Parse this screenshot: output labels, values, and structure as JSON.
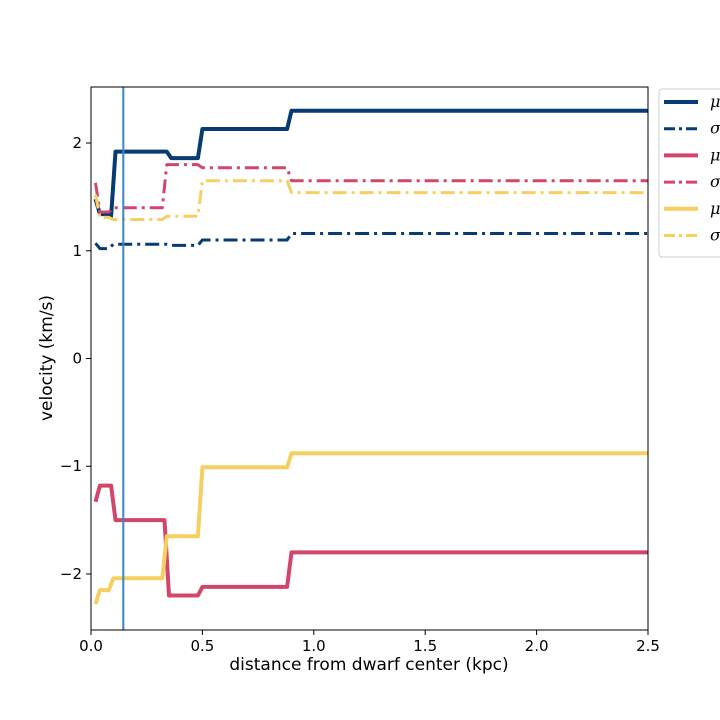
{
  "chart_data": {
    "type": "line",
    "xlabel": "distance from dwarf center (kpc)",
    "ylabel": "velocity (km/s)",
    "xlim": [
      0.0,
      2.5
    ],
    "ylim": [
      -2.52,
      2.52
    ],
    "x_ticks": [
      0.0,
      0.5,
      1.0,
      1.5,
      2.0,
      2.5
    ],
    "x_tick_labels": [
      "0.0",
      "0.5",
      "1.0",
      "1.5",
      "2.0",
      "2.5"
    ],
    "y_ticks": [
      -2,
      -1,
      0,
      1,
      2
    ],
    "y_tick_labels": [
      "−2",
      "−1",
      "0",
      "1",
      "2"
    ],
    "vertical_line": {
      "x": 0.145,
      "color": "#3a86c8"
    },
    "grid": false,
    "legend_placement": "outside-top-right",
    "series": [
      {
        "name": "μ",
        "color": "#063b73",
        "style": "solid",
        "x": [
          0.02,
          0.04,
          0.06,
          0.08,
          0.09,
          0.11,
          0.13,
          0.32,
          0.34,
          0.36,
          0.48,
          0.5,
          0.52,
          0.88,
          0.9,
          0.92,
          2.5
        ],
        "y": [
          1.48,
          1.34,
          1.34,
          1.34,
          1.32,
          1.92,
          1.92,
          1.92,
          1.92,
          1.86,
          1.86,
          2.13,
          2.13,
          2.13,
          2.3,
          2.3,
          2.3
        ]
      },
      {
        "name": "σ",
        "color": "#063b73",
        "style": "dashdot",
        "x": [
          0.02,
          0.04,
          0.06,
          0.08,
          0.1,
          0.12,
          0.32,
          0.34,
          0.36,
          0.48,
          0.5,
          0.52,
          0.88,
          0.9,
          0.92,
          2.5
        ],
        "y": [
          1.07,
          1.02,
          1.02,
          1.02,
          1.06,
          1.06,
          1.06,
          1.06,
          1.05,
          1.05,
          1.1,
          1.1,
          1.1,
          1.16,
          1.16,
          1.16
        ]
      },
      {
        "name": "μ",
        "color": "#d1466a",
        "style": "solid",
        "x": [
          0.02,
          0.04,
          0.06,
          0.08,
          0.09,
          0.11,
          0.32,
          0.33,
          0.35,
          0.48,
          0.5,
          0.52,
          0.88,
          0.9,
          0.92,
          2.5
        ],
        "y": [
          -1.33,
          -1.18,
          -1.18,
          -1.18,
          -1.18,
          -1.5,
          -1.5,
          -1.5,
          -2.2,
          -2.2,
          -2.12,
          -2.12,
          -2.12,
          -1.8,
          -1.8,
          -1.8
        ]
      },
      {
        "name": "σ",
        "color": "#d1466a",
        "style": "dashdot",
        "x": [
          0.02,
          0.04,
          0.06,
          0.08,
          0.1,
          0.12,
          0.32,
          0.34,
          0.36,
          0.48,
          0.5,
          0.52,
          0.88,
          0.9,
          0.92,
          2.5
        ],
        "y": [
          1.63,
          1.36,
          1.36,
          1.36,
          1.4,
          1.4,
          1.4,
          1.8,
          1.8,
          1.8,
          1.77,
          1.77,
          1.77,
          1.65,
          1.65,
          1.65
        ]
      },
      {
        "name": "μ",
        "color": "#f5d060",
        "style": "solid",
        "x": [
          0.02,
          0.04,
          0.06,
          0.08,
          0.1,
          0.12,
          0.32,
          0.34,
          0.36,
          0.48,
          0.5,
          0.52,
          0.88,
          0.9,
          0.92,
          2.5
        ],
        "y": [
          -2.28,
          -2.15,
          -2.15,
          -2.15,
          -2.04,
          -2.04,
          -2.04,
          -1.65,
          -1.65,
          -1.65,
          -1.01,
          -1.01,
          -1.01,
          -0.88,
          -0.88,
          -0.88
        ]
      },
      {
        "name": "σ",
        "color": "#f5d060",
        "style": "dashdot",
        "x": [
          0.02,
          0.04,
          0.06,
          0.08,
          0.1,
          0.12,
          0.32,
          0.34,
          0.36,
          0.48,
          0.5,
          0.52,
          0.88,
          0.9,
          0.92,
          2.5
        ],
        "y": [
          1.52,
          1.31,
          1.31,
          1.31,
          1.29,
          1.29,
          1.29,
          1.32,
          1.32,
          1.32,
          1.65,
          1.65,
          1.65,
          1.54,
          1.54,
          1.54
        ]
      }
    ]
  }
}
